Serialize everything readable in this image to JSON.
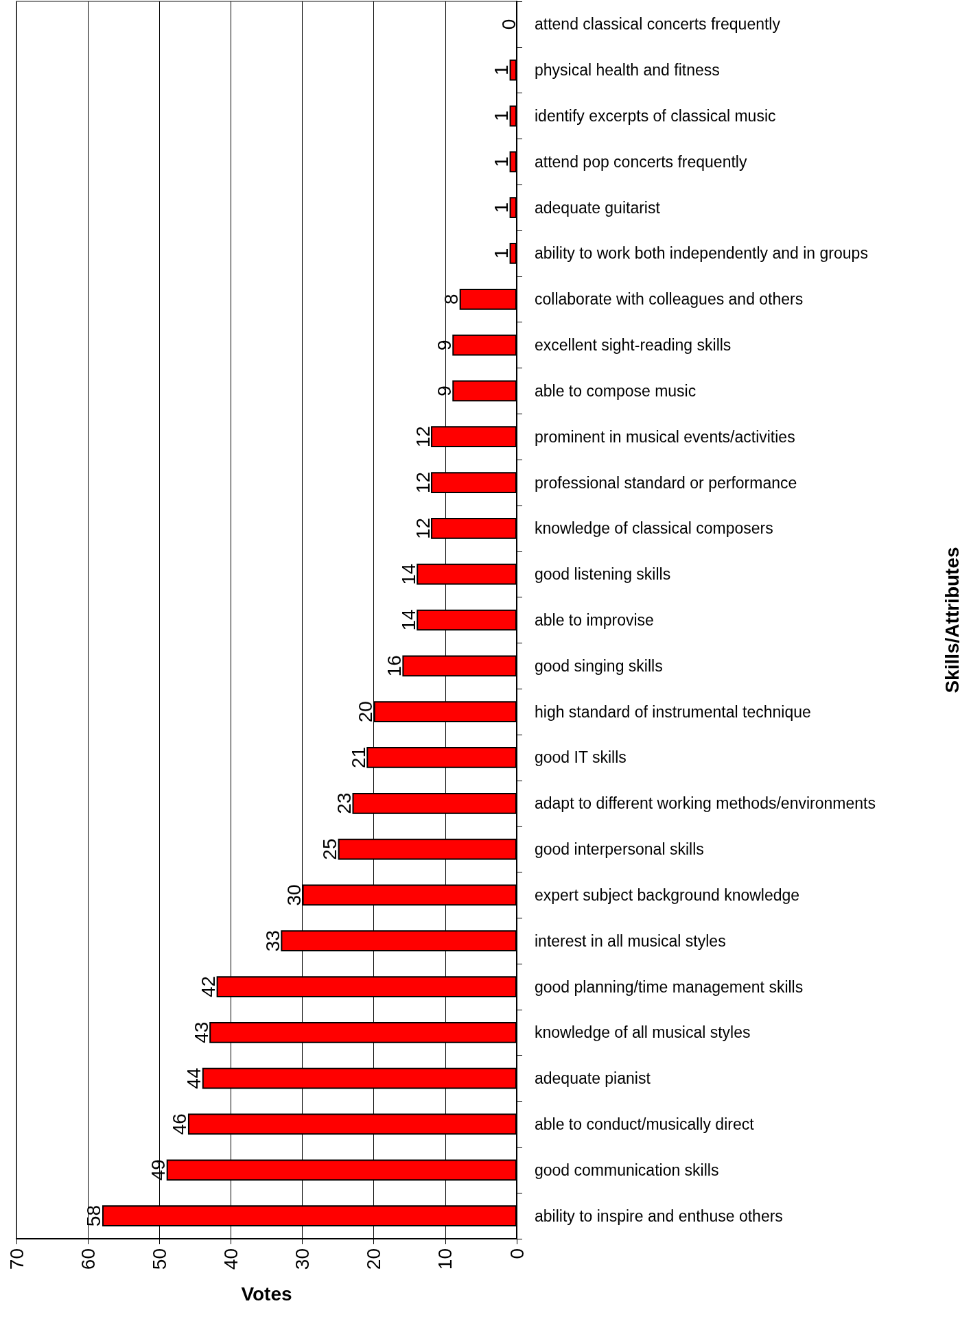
{
  "chart_data": {
    "type": "bar",
    "orientation": "horizontal",
    "xlabel": "Votes",
    "ylabel": "Skills/Attributes",
    "categories": [
      "attend classical concerts frequently",
      "physical health and fitness",
      "identify excerpts of classical music",
      "attend pop concerts frequently",
      "adequate guitarist",
      "ability to work both independently and in groups",
      "collaborate with colleagues and others",
      "excellent sight-reading skills",
      "able to compose music",
      "prominent in musical events/activities",
      "professional standard or performance",
      "knowledge of classical composers",
      "good listening skills",
      "able to improvise",
      "good singing skills",
      "high standard of instrumental technique",
      "good IT skills",
      "adapt to different working methods/environments",
      "good interpersonal skills",
      "expert subject background knowledge",
      "interest in all musical styles",
      "good planning/time management skills",
      "knowledge of all musical styles",
      "adequate pianist",
      "able to conduct/musically direct",
      "good communication skills",
      "ability to inspire and enthuse others"
    ],
    "values": [
      0,
      1,
      1,
      1,
      1,
      1,
      8,
      9,
      9,
      12,
      12,
      12,
      14,
      14,
      16,
      20,
      21,
      23,
      25,
      30,
      33,
      42,
      43,
      44,
      46,
      49,
      58
    ],
    "color": "#ff0000",
    "xlim": [
      70,
      0
    ],
    "xticks": [
      0,
      10,
      20,
      30,
      40,
      50,
      60,
      70
    ],
    "grid": "x",
    "data_labels": true
  }
}
